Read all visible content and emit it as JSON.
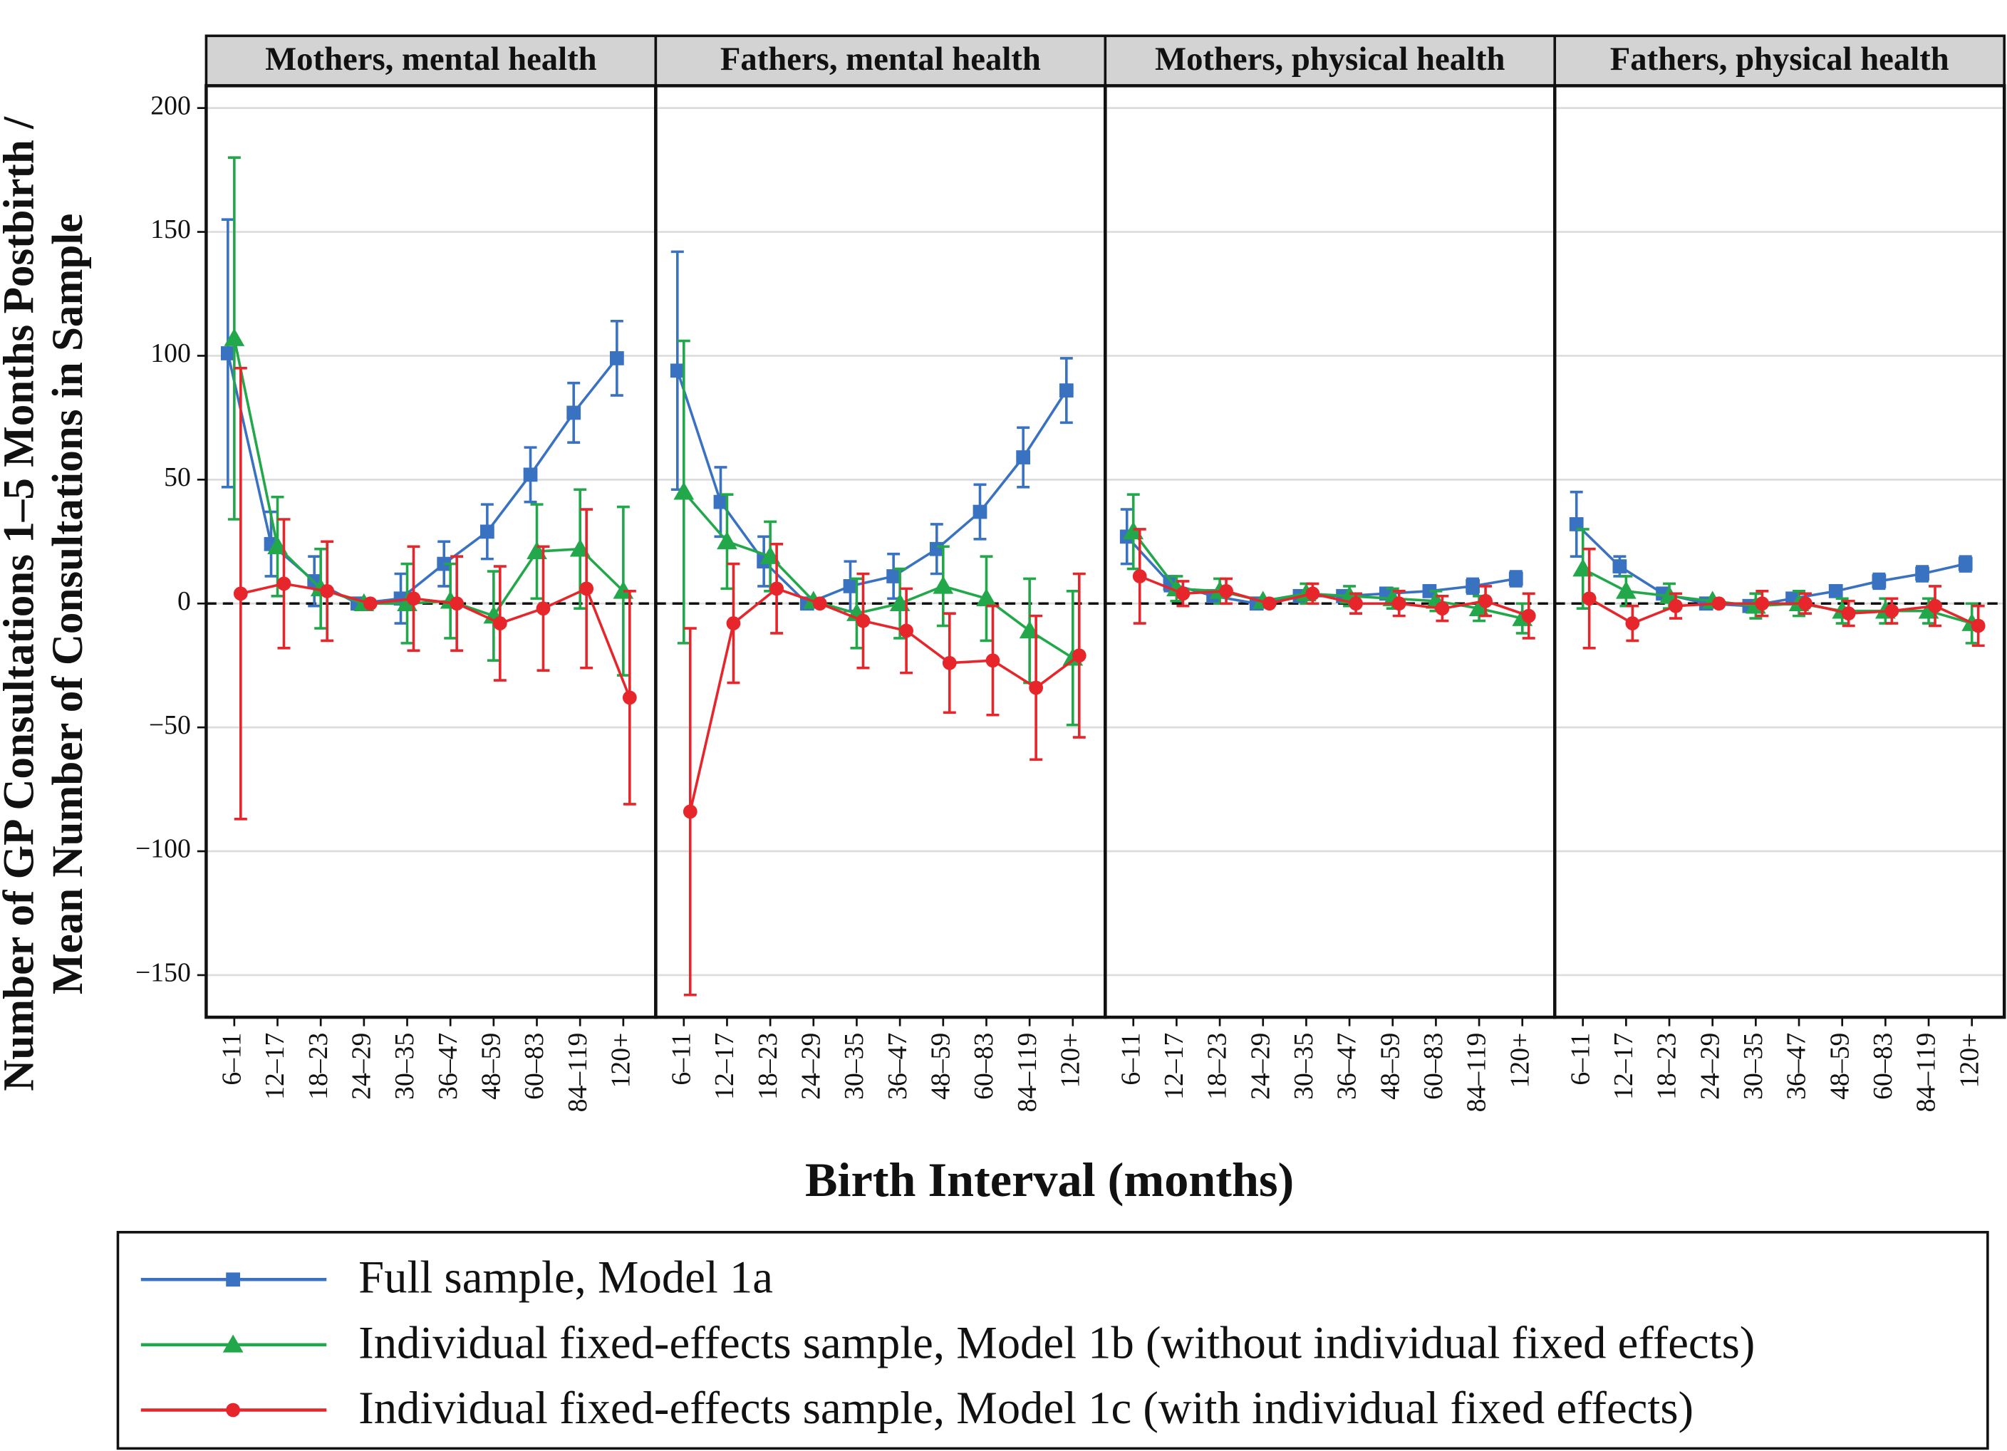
{
  "chart_data": {
    "type": "line",
    "y_label": [
      "Number of GP Consultations 1–5 Months Postbirth /",
      "Mean Number of Consultations in Sample"
    ],
    "x_label": "Birth Interval (months)",
    "categories": [
      "6–11",
      "12–17",
      "18–23",
      "24–29",
      "30–35",
      "36–47",
      "48–59",
      "60–83",
      "84–119",
      "120+"
    ],
    "ylim": [
      -167,
      209
    ],
    "yticks": [
      {
        "value": -150,
        "label": "−150"
      },
      {
        "value": -100,
        "label": "−100"
      },
      {
        "value": -50,
        "label": "−50"
      },
      0,
      50,
      100,
      150,
      200
    ],
    "grid": true,
    "reference_line": 0,
    "legend": "bottom",
    "series": [
      {
        "name": "Full sample, Model 1a",
        "color": "#3a72c2",
        "marker": "square"
      },
      {
        "name": "Individual fixed-effects sample, Model 1b (without individual fixed effects)",
        "color": "#22a84a",
        "marker": "triangle"
      },
      {
        "name": "Individual fixed-effects sample, Model 1c (with individual fixed effects)",
        "color": "#e6262b",
        "marker": "circle"
      }
    ],
    "panels": [
      {
        "title": "Mothers, mental health",
        "series": [
          {
            "values": [
              101,
              24,
              9,
              0,
              2,
              16,
              29,
              52,
              77,
              99
            ],
            "errors": [
              54,
              13,
              10,
              0,
              10,
              9,
              11,
              11,
              12,
              15
            ]
          },
          {
            "values": [
              107,
              23,
              6,
              0,
              0,
              1,
              -5,
              21,
              22,
              5
            ],
            "errors": [
              73,
              20,
              16,
              0,
              16,
              15,
              18,
              19,
              24,
              34
            ]
          },
          {
            "values": [
              4,
              8,
              5,
              0,
              2,
              0,
              -8,
              -2,
              6,
              -38
            ],
            "errors": [
              91,
              26,
              20,
              0,
              21,
              19,
              23,
              25,
              32,
              43
            ]
          }
        ]
      },
      {
        "title": "Fathers, mental health",
        "series": [
          {
            "values": [
              94,
              41,
              17,
              0,
              7,
              11,
              22,
              37,
              59,
              86
            ],
            "errors": [
              48,
              14,
              10,
              0,
              10,
              9,
              10,
              11,
              12,
              13
            ]
          },
          {
            "values": [
              45,
              25,
              19,
              1,
              -4,
              0,
              7,
              2,
              -11,
              -22
            ],
            "errors": [
              61,
              19,
              14,
              0,
              14,
              14,
              16,
              17,
              21,
              27
            ]
          },
          {
            "values": [
              -84,
              -8,
              6,
              0,
              -7,
              -11,
              -24,
              -23,
              -34,
              -21
            ],
            "errors": [
              74,
              24,
              18,
              0,
              19,
              17,
              20,
              22,
              29,
              33
            ]
          }
        ]
      },
      {
        "title": "Mothers, physical health",
        "series": [
          {
            "values": [
              27,
              8,
              3,
              0,
              3,
              3,
              4,
              5,
              7,
              10
            ],
            "errors": [
              11,
              3,
              2,
              0,
              2,
              2,
              2,
              2,
              3,
              3
            ]
          },
          {
            "values": [
              29,
              6,
              5,
              1,
              4,
              3,
              2,
              1,
              -2,
              -6
            ],
            "errors": [
              15,
              5,
              5,
              0,
              4,
              4,
              4,
              4,
              5,
              6
            ]
          },
          {
            "values": [
              11,
              4,
              5,
              0,
              4,
              0,
              0,
              -2,
              1,
              -5
            ],
            "errors": [
              19,
              5,
              5,
              0,
              4,
              4,
              5,
              5,
              6,
              9
            ]
          }
        ]
      },
      {
        "title": "Fathers, physical health",
        "series": [
          {
            "values": [
              32,
              15,
              4,
              0,
              -1,
              2,
              5,
              9,
              12,
              16
            ],
            "errors": [
              13,
              4,
              2,
              0,
              2,
              2,
              2,
              3,
              3,
              3
            ]
          },
          {
            "values": [
              14,
              5,
              3,
              1,
              -1,
              0,
              -3,
              -3,
              -3,
              -8
            ],
            "errors": [
              16,
              6,
              5,
              0,
              5,
              5,
              5,
              5,
              5,
              8
            ]
          },
          {
            "values": [
              2,
              -8,
              -1,
              0,
              0,
              0,
              -4,
              -3,
              -1,
              -9
            ],
            "errors": [
              20,
              7,
              5,
              0,
              5,
              4,
              5,
              5,
              8,
              8
            ]
          }
        ]
      }
    ]
  }
}
